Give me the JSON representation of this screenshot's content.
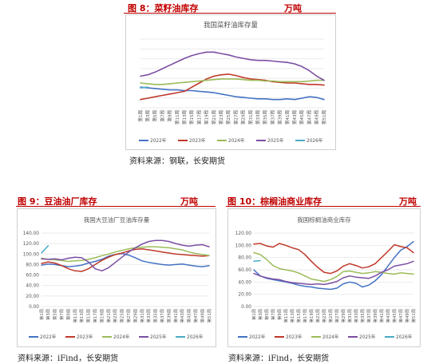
{
  "figures": [
    {
      "id": "fig8",
      "title": "图 8：菜籽油库存",
      "unit": "万吨",
      "source": "资料来源：钢联，长安期货"
    },
    {
      "id": "fig9",
      "title": "图 9：豆油油厂库存",
      "unit": "万吨",
      "source": "资料来源：iFind，长安期货"
    },
    {
      "id": "fig10",
      "title": "图 10：棕榈油商业库存",
      "unit": "万吨",
      "source": "资料来源：iFind，长安期货"
    }
  ],
  "colors": {
    "2022": "#4472c4",
    "2023": "#c0392b",
    "2024": "#9bbb59",
    "2025": "#7b4ea3",
    "2026": "#4bacc6"
  },
  "chart_data": [
    {
      "id": "fig8",
      "type": "line",
      "title": "我国菜籽油库存量",
      "xlabel": "",
      "ylabel": "",
      "yaxis_shown": false,
      "ylim": [
        0,
        100
      ],
      "grid": true,
      "legend": "bottom",
      "categories": [
        "第1周",
        "第3周",
        "第5周",
        "第7周",
        "第9周",
        "第11周",
        "第13周",
        "第15周",
        "第17周",
        "第19周",
        "第21周",
        "第23周",
        "第25周",
        "第27周",
        "第29周",
        "第31周",
        "第33周",
        "第35周",
        "第37周",
        "第39周",
        "第41周",
        "第43周",
        "第45周",
        "第47周",
        "第49周",
        "第51周"
      ],
      "series": [
        {
          "name": "2022年",
          "values": [
            30,
            29,
            28,
            27,
            26,
            26,
            25,
            25,
            24,
            23,
            22,
            20,
            18,
            16,
            15,
            14,
            13,
            13,
            12,
            12,
            13,
            12,
            14,
            16,
            15,
            12
          ]
        },
        {
          "name": "2023年",
          "values": [
            12,
            14,
            16,
            18,
            20,
            22,
            24,
            30,
            36,
            42,
            46,
            48,
            49,
            47,
            44,
            42,
            41,
            40,
            38,
            37,
            36,
            36,
            35,
            34,
            34,
            33
          ]
        },
        {
          "name": "2024年",
          "values": [
            36,
            35,
            34,
            34,
            35,
            36,
            37,
            38,
            39,
            40,
            41,
            42,
            42,
            42,
            41,
            40,
            40,
            39,
            39,
            38,
            38,
            38,
            38,
            39,
            40,
            40
          ]
        },
        {
          "name": "2025年",
          "values": [
            46,
            48,
            52,
            57,
            62,
            67,
            72,
            76,
            79,
            81,
            81,
            79,
            77,
            74,
            72,
            70,
            69,
            69,
            68,
            67,
            66,
            64,
            60,
            54,
            46,
            40
          ]
        },
        {
          "name": "2026年",
          "values": [
            29,
            30,
            null,
            null,
            null,
            null,
            null,
            null,
            null,
            null,
            null,
            null,
            null,
            null,
            null,
            null,
            null,
            null,
            null,
            null,
            null,
            null,
            null,
            null,
            null,
            null
          ]
        }
      ]
    },
    {
      "id": "fig9",
      "type": "line",
      "title": "我国大豆油厂豆油库存量",
      "xlabel": "",
      "ylabel": "",
      "ylim": [
        0,
        140
      ],
      "yticks": [
        "0.00",
        "20.00",
        "40.00",
        "60.00",
        "80.00",
        "100.00",
        "120.00",
        "140.00"
      ],
      "grid": true,
      "legend": "bottom",
      "categories": [
        "第1周",
        "第3周",
        "第5周",
        "第7周",
        "第9周",
        "第11周",
        "第13周",
        "第15周",
        "第17周",
        "第19周",
        "第21周",
        "第23周",
        "第25周",
        "第27周",
        "第29周",
        "第31周",
        "第33周",
        "第35周",
        "第37周",
        "第39周",
        "第41周",
        "第43周",
        "第45周",
        "第47周",
        "第49周",
        "第51周"
      ],
      "series": [
        {
          "name": "2022年",
          "values": [
            79,
            81,
            80,
            78,
            76,
            77,
            79,
            83,
            86,
            90,
            96,
            99,
            101,
            98,
            93,
            87,
            84,
            82,
            80,
            79,
            80,
            81,
            79,
            77,
            76,
            78
          ]
        },
        {
          "name": "2023年",
          "values": [
            82,
            85,
            83,
            78,
            72,
            68,
            67,
            72,
            80,
            88,
            94,
            99,
            102,
            106,
            109,
            110,
            108,
            106,
            104,
            102,
            100,
            99,
            98,
            97,
            96,
            97
          ]
        },
        {
          "name": "2024年",
          "values": [
            92,
            90,
            89,
            88,
            86,
            87,
            88,
            90,
            93,
            97,
            100,
            104,
            107,
            110,
            112,
            113,
            114,
            114,
            113,
            112,
            110,
            108,
            104,
            101,
            99,
            97
          ]
        },
        {
          "name": "2025年",
          "values": [
            91,
            90,
            91,
            89,
            92,
            94,
            93,
            85,
            72,
            68,
            74,
            84,
            94,
            104,
            112,
            119,
            124,
            126,
            126,
            124,
            120,
            117,
            115,
            117,
            118,
            114
          ]
        },
        {
          "name": "2026年",
          "values": [
            102,
            116,
            null,
            null,
            null,
            null,
            null,
            null,
            null,
            null,
            null,
            null,
            null,
            null,
            null,
            null,
            null,
            null,
            null,
            null,
            null,
            null,
            null,
            null,
            null,
            null
          ]
        }
      ]
    },
    {
      "id": "fig10",
      "type": "line",
      "title": "我国棕榈油商业库存",
      "xlabel": "",
      "ylabel": "",
      "ylim": [
        0,
        120
      ],
      "yticks": [
        "0.00",
        "20.00",
        "40.00",
        "60.00",
        "80.00",
        "100.00",
        "120.00"
      ],
      "grid": true,
      "legend": "bottom",
      "categories": [
        "第1周",
        "第3周",
        "第5周",
        "第7周",
        "第9周",
        "第11周",
        "第13周",
        "第15周",
        "第17周",
        "第19周",
        "第21周",
        "第23周",
        "第25周",
        "第27周",
        "第29周",
        "第31周",
        "第33周",
        "第35周",
        "第37周",
        "第39周",
        "第41周",
        "第43周",
        "第45周",
        "第47周",
        "第49周",
        "第51周"
      ],
      "series": [
        {
          "name": "2022年",
          "values": [
            60,
            50,
            46,
            44,
            42,
            40,
            38,
            35,
            33,
            32,
            30,
            29,
            28,
            30,
            37,
            40,
            38,
            32,
            35,
            42,
            52,
            66,
            80,
            92,
            98,
            106
          ]
        },
        {
          "name": "2023年",
          "values": [
            102,
            103,
            99,
            97,
            103,
            100,
            96,
            93,
            85,
            74,
            64,
            56,
            54,
            58,
            66,
            70,
            67,
            63,
            65,
            70,
            80,
            90,
            101,
            98,
            96,
            88
          ]
        },
        {
          "name": "2024年",
          "values": [
            88,
            85,
            77,
            67,
            62,
            60,
            58,
            55,
            50,
            45,
            43,
            41,
            44,
            49,
            57,
            58,
            56,
            54,
            55,
            57,
            56,
            54,
            53,
            55,
            54,
            53
          ]
        },
        {
          "name": "2025年",
          "values": [
            54,
            50,
            47,
            45,
            44,
            41,
            39,
            38,
            37,
            36,
            37,
            36,
            38,
            41,
            47,
            50,
            48,
            47,
            46,
            50,
            56,
            60,
            66,
            68,
            70,
            74
          ]
        },
        {
          "name": "2026年",
          "values": [
            74,
            75,
            null,
            null,
            null,
            null,
            null,
            null,
            null,
            null,
            null,
            null,
            null,
            null,
            null,
            null,
            null,
            null,
            null,
            null,
            null,
            null,
            null,
            null,
            null,
            null
          ]
        }
      ]
    }
  ]
}
